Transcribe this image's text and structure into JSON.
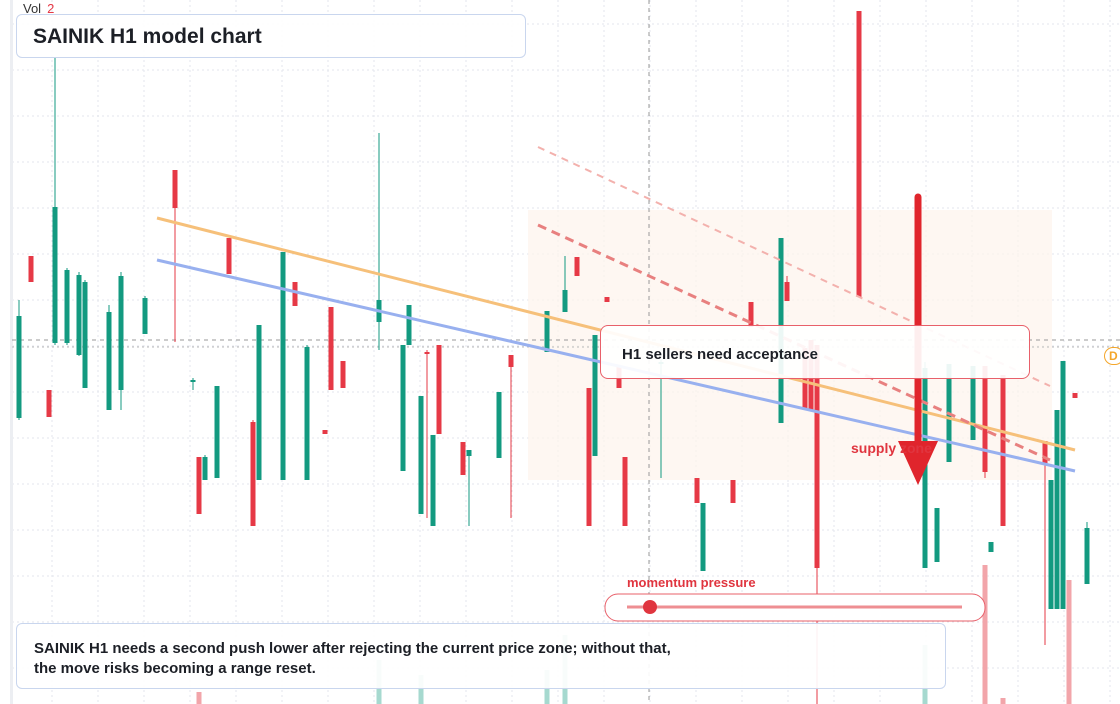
{
  "volume": {
    "label": "Vol",
    "value": "2"
  },
  "header": {
    "title": "SAINIK H1 model chart"
  },
  "annotations": {
    "acceptance": "H1 sellers need acceptance",
    "supply": "supply zone",
    "momentum": "momentum pressure",
    "level_tag": "D"
  },
  "description": "SAINIK H1 needs a second push lower after rejecting the current price zone; without that, the move risks becoming a range reset."
}
